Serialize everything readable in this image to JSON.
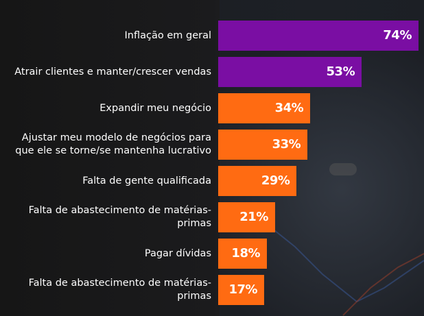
{
  "chart_data": {
    "type": "bar",
    "orientation": "horizontal",
    "categories": [
      "Inflação em geral",
      "Atrair clientes e manter/crescer vendas",
      "Expandir meu negócio",
      "Ajustar meu modelo de negócios para que ele se torne/se mantenha lucrativo",
      "Falta de gente qualificada",
      "Falta de abastecimento de matérias-primas",
      "Pagar dívidas",
      "Falta de abastecimento de matérias-primas"
    ],
    "values": [
      74,
      53,
      34,
      33,
      29,
      21,
      18,
      17
    ],
    "value_labels": [
      "74%",
      "53%",
      "34%",
      "33%",
      "29%",
      "21%",
      "18%",
      "17%"
    ],
    "colors": [
      "#7a0ea3",
      "#7a0ea3",
      "#ff6b12",
      "#ff6b12",
      "#ff6b12",
      "#ff6b12",
      "#ff6b12",
      "#ff6b12"
    ]
  }
}
